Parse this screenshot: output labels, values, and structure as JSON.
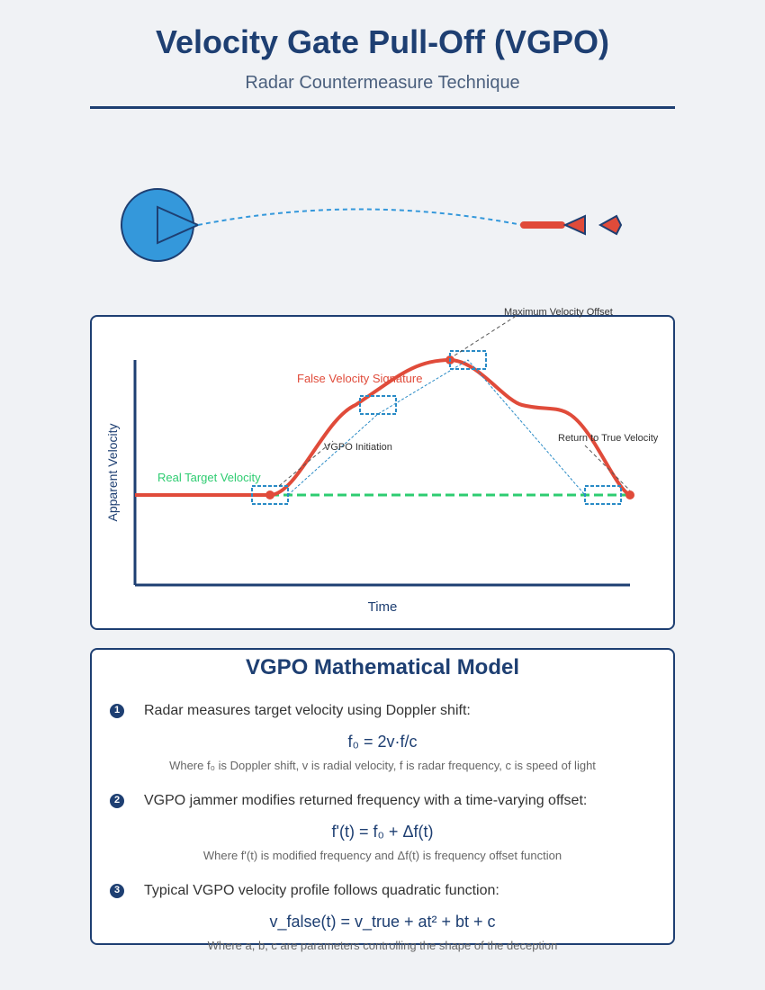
{
  "header": {
    "title": "Velocity Gate Pull-Off (VGPO)",
    "subtitle": "Radar Countermeasure Technique"
  },
  "chart": {
    "ylabel": "Apparent Velocity",
    "xlabel": "Time",
    "annotations": {
      "real_target": "Real Target Velocity",
      "false_signature": "False Velocity Signature",
      "initiation": "VGPO Initiation",
      "max_offset": "Maximum Velocity Offset",
      "return": "Return to True Velocity"
    }
  },
  "colors": {
    "primary": "#1e3f72",
    "false_velocity": "#e04b3a",
    "real_velocity": "#2ecc71",
    "gate_box": "#2a8bc6",
    "radar": "#3498db"
  },
  "math": {
    "title": "VGPO Mathematical Model",
    "steps": [
      {
        "num": "1",
        "text": "Radar measures target velocity using Doppler shift:",
        "formula": "f₀ = 2v·f/c",
        "note": "Where f₀ is Doppler shift, v is radial velocity, f is radar frequency, c is speed of light"
      },
      {
        "num": "2",
        "text": "VGPO jammer modifies returned frequency with a time-varying offset:",
        "formula": "f'(t) = f₀ + Δf(t)",
        "note": "Where f'(t) is modified frequency and Δf(t) is frequency offset function"
      },
      {
        "num": "3",
        "text": "Typical VGPO velocity profile follows quadratic function:",
        "formula": "v_false(t) = v_true + at² + bt + c",
        "note": "Where a, b, c are parameters controlling the shape of the deception"
      }
    ]
  }
}
